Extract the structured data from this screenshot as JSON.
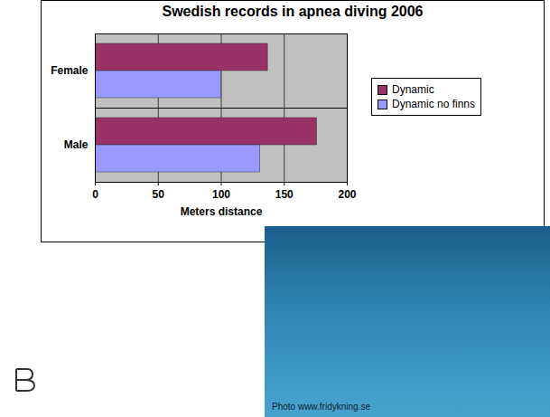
{
  "chart_data": {
    "type": "bar",
    "title": "Swedish records in apnea diving 2006",
    "orientation": "horizontal",
    "categories": [
      "Female",
      "Male"
    ],
    "series": [
      {
        "name": "Dynamic",
        "color": "#993366",
        "values": [
          137,
          176
        ]
      },
      {
        "name": "Dynamic no finns",
        "color": "#9999ff",
        "values": [
          100,
          131
        ]
      }
    ],
    "xlabel": "Meters distance",
    "xlim": [
      0,
      200
    ],
    "xticks": [
      0,
      50,
      100,
      150,
      200
    ],
    "grid": true,
    "legend": "right",
    "annotations": [
      "Photo www.fridykning.se"
    ]
  }
}
